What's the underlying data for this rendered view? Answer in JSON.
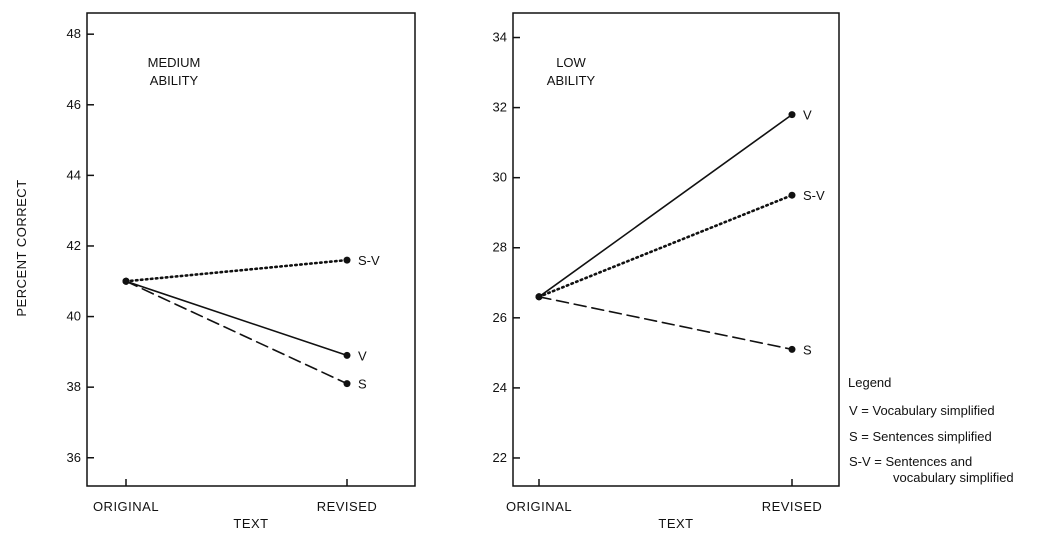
{
  "figure": {
    "ylabel": "PERCENT CORRECT",
    "legend": {
      "title": "Legend",
      "entries": [
        "V = Vocabulary simplified",
        "S = Sentences simplified",
        "S-V = Sentences and",
        "vocabulary simplified"
      ]
    }
  },
  "chart_data": [
    {
      "type": "line",
      "annotation": [
        "MEDIUM",
        "ABILITY"
      ],
      "categories": [
        "ORIGINAL",
        "REVISED"
      ],
      "xlabel": "TEXT",
      "ylabel": "PERCENT CORRECT",
      "ylim": [
        35.2,
        48.6
      ],
      "yticks": [
        36,
        38,
        40,
        42,
        44,
        46,
        48
      ],
      "series": [
        {
          "name": "S-V",
          "values": [
            41.0,
            41.6
          ],
          "style": "dotted"
        },
        {
          "name": "V",
          "values": [
            41.0,
            38.9
          ],
          "style": "solid"
        },
        {
          "name": "S",
          "values": [
            41.0,
            38.1
          ],
          "style": "dashed"
        }
      ]
    },
    {
      "type": "line",
      "annotation": [
        "LOW",
        "ABILITY"
      ],
      "categories": [
        "ORIGINAL",
        "REVISED"
      ],
      "xlabel": "TEXT",
      "ylabel": "",
      "ylim": [
        21.2,
        34.7
      ],
      "yticks": [
        22,
        24,
        26,
        28,
        30,
        32,
        34
      ],
      "series": [
        {
          "name": "V",
          "values": [
            26.6,
            31.8
          ],
          "style": "solid"
        },
        {
          "name": "S-V",
          "values": [
            26.6,
            29.5
          ],
          "style": "dotted"
        },
        {
          "name": "S",
          "values": [
            26.6,
            25.1
          ],
          "style": "dashed"
        }
      ]
    }
  ]
}
